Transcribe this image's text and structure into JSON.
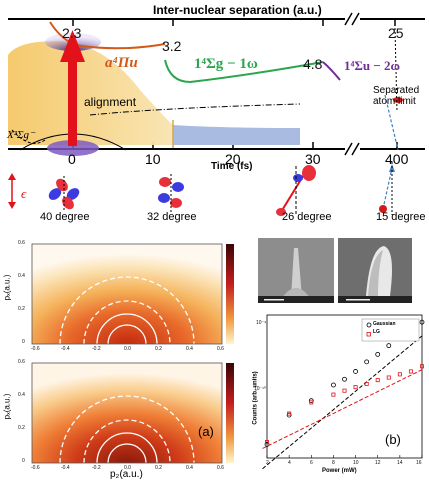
{
  "top": {
    "axis_title": "Inter-nuclear separation (a.u.)",
    "separations": [
      "2.3",
      "3.2",
      "4.8",
      "25"
    ],
    "curve_labels": [
      "a⁴Πu",
      "1⁴Σg − 1ω",
      "1⁴Σu − 2ω"
    ],
    "ground_label": "X³Σg⁻",
    "alignment_label": "alignment",
    "separated_label": "Separated\natom limit",
    "time_ticks": [
      "0",
      "10",
      "20",
      "30",
      "400"
    ],
    "time_title": "Time (fs)",
    "epsilon": "ϵ",
    "angles": [
      "40 degree",
      "32 degree",
      "26 degree",
      "15 degree"
    ],
    "colors": {
      "red": "#e3121a",
      "orange": "#d25a18",
      "green": "#2ca64e",
      "purple": "#6f2e99",
      "yellow": "#f6d58a",
      "blue": "#a9bbe1"
    }
  },
  "panel_a": {
    "ylabel": "pₓ(a.u.)",
    "xlabel": "p₂(a.u.)",
    "y_ticks": [
      "0.6",
      "0.4",
      "0.2",
      "0"
    ],
    "x_ticks": [
      "-0.6",
      "-0.4",
      "-0.2",
      "0.0",
      "0.2",
      "0.4",
      "0.6"
    ],
    "label": "(a)"
  },
  "panel_b": {
    "label": "(b)",
    "ylabel": "Counts (arb. units)",
    "xlabel": "Power (mW)",
    "x_ticks": [
      "2",
      "4",
      "6",
      "8",
      "10",
      "12",
      "14",
      "16"
    ],
    "y_ticks": [
      "10⁻⁹",
      "10⁻¹⁰"
    ],
    "legend": [
      "Gaussian",
      "LG"
    ]
  },
  "chart_data": {
    "type": "scatter",
    "xlabel": "Power (mW)",
    "ylabel": "Counts (arb. units)",
    "xlim": [
      2,
      16
    ],
    "log_y": true,
    "series": [
      {
        "name": "Gaussian",
        "x": [
          2,
          4,
          6,
          8,
          9,
          10,
          11,
          12,
          13,
          14,
          15,
          16
        ],
        "y": [
          2.7e-11,
          6.5e-11,
          1e-10,
          1.6e-10,
          1.9e-10,
          2.4e-10,
          3.2e-10,
          4e-10,
          5.2e-10,
          6.6e-10,
          8e-10,
          1.05e-09
        ]
      },
      {
        "name": "LG",
        "x": [
          2,
          4,
          6,
          8,
          9,
          10,
          11,
          12,
          13,
          14,
          15,
          16
        ],
        "y": [
          2.9e-11,
          6.8e-11,
          9.5e-11,
          1.2e-10,
          1.35e-10,
          1.5e-10,
          1.65e-10,
          1.85e-10,
          2e-10,
          2.2e-10,
          2.4e-10,
          2.8e-10
        ]
      }
    ]
  }
}
